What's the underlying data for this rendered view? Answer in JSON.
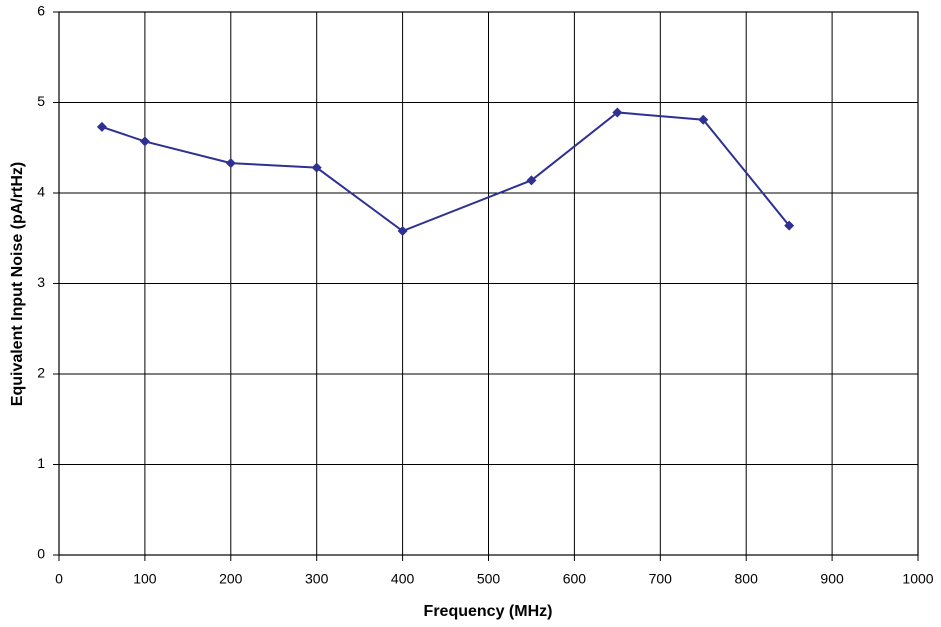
{
  "chart_data": {
    "type": "line",
    "x_label": "Frequency (MHz)",
    "y_label": "Equivalent Input Noise (pA/rtHz)",
    "series": [
      {
        "color": "#2e3192",
        "x": [
          50,
          100,
          200,
          300,
          400,
          550,
          650,
          750,
          850
        ],
        "values": [
          4.73,
          4.57,
          4.33,
          4.28,
          3.58,
          4.14,
          4.89,
          4.81,
          3.64
        ]
      }
    ],
    "xlim": [
      0,
      1000
    ],
    "xticks": [
      0,
      100,
      200,
      300,
      400,
      500,
      600,
      700,
      800,
      900,
      1000
    ],
    "ylim": [
      0,
      6
    ],
    "yticks": [
      0,
      1,
      2,
      3,
      4,
      5,
      6
    ],
    "grid": true
  }
}
